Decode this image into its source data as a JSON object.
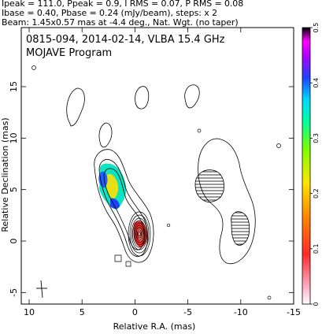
{
  "header": {
    "line1": "Ipeak = 111.0, Ppeak = 0.9, I RMS = 0.07, P RMS = 0.08",
    "line2": "Ibase = 0.40, Pbase = 0.24 (mJy/beam), steps: x 2",
    "line3": "Beam: 1.45x0.57 mas at -4.4 deg., Nat. Wgt. (no taper)"
  },
  "chart_data": {
    "type": "contour",
    "title": "0815-094, 2014-02-14, VLBA 15.4 GHz",
    "subtitle": "MOJAVE Program",
    "xlabel": "Relative R.A. (mas)",
    "ylabel": "Relative Declination (mas)",
    "xlim": [
      10,
      -15
    ],
    "ylim": [
      -6,
      20
    ],
    "x_ticks": [
      10,
      5,
      0,
      -5,
      -10,
      -15
    ],
    "y_ticks": [
      -5,
      0,
      5,
      10,
      15
    ],
    "colorbar": {
      "range": [
        0,
        0.5
      ],
      "ticks": [
        0,
        0.1,
        0.2,
        0.3,
        0.4,
        0.5
      ],
      "colors": [
        "#ffffff",
        "#ff3a3a",
        "#ff8a00",
        "#ffe600",
        "#7dff00",
        "#00ffa0",
        "#00d8ff",
        "#2040ff",
        "#b400ff",
        "#ff00ff",
        "#000000"
      ]
    },
    "core": {
      "x": 0.0,
      "y": 0.8
    },
    "contour_levels": 10,
    "beam": {
      "major_mas": 1.45,
      "minor_mas": 0.57,
      "pa_deg": -4.4
    }
  }
}
